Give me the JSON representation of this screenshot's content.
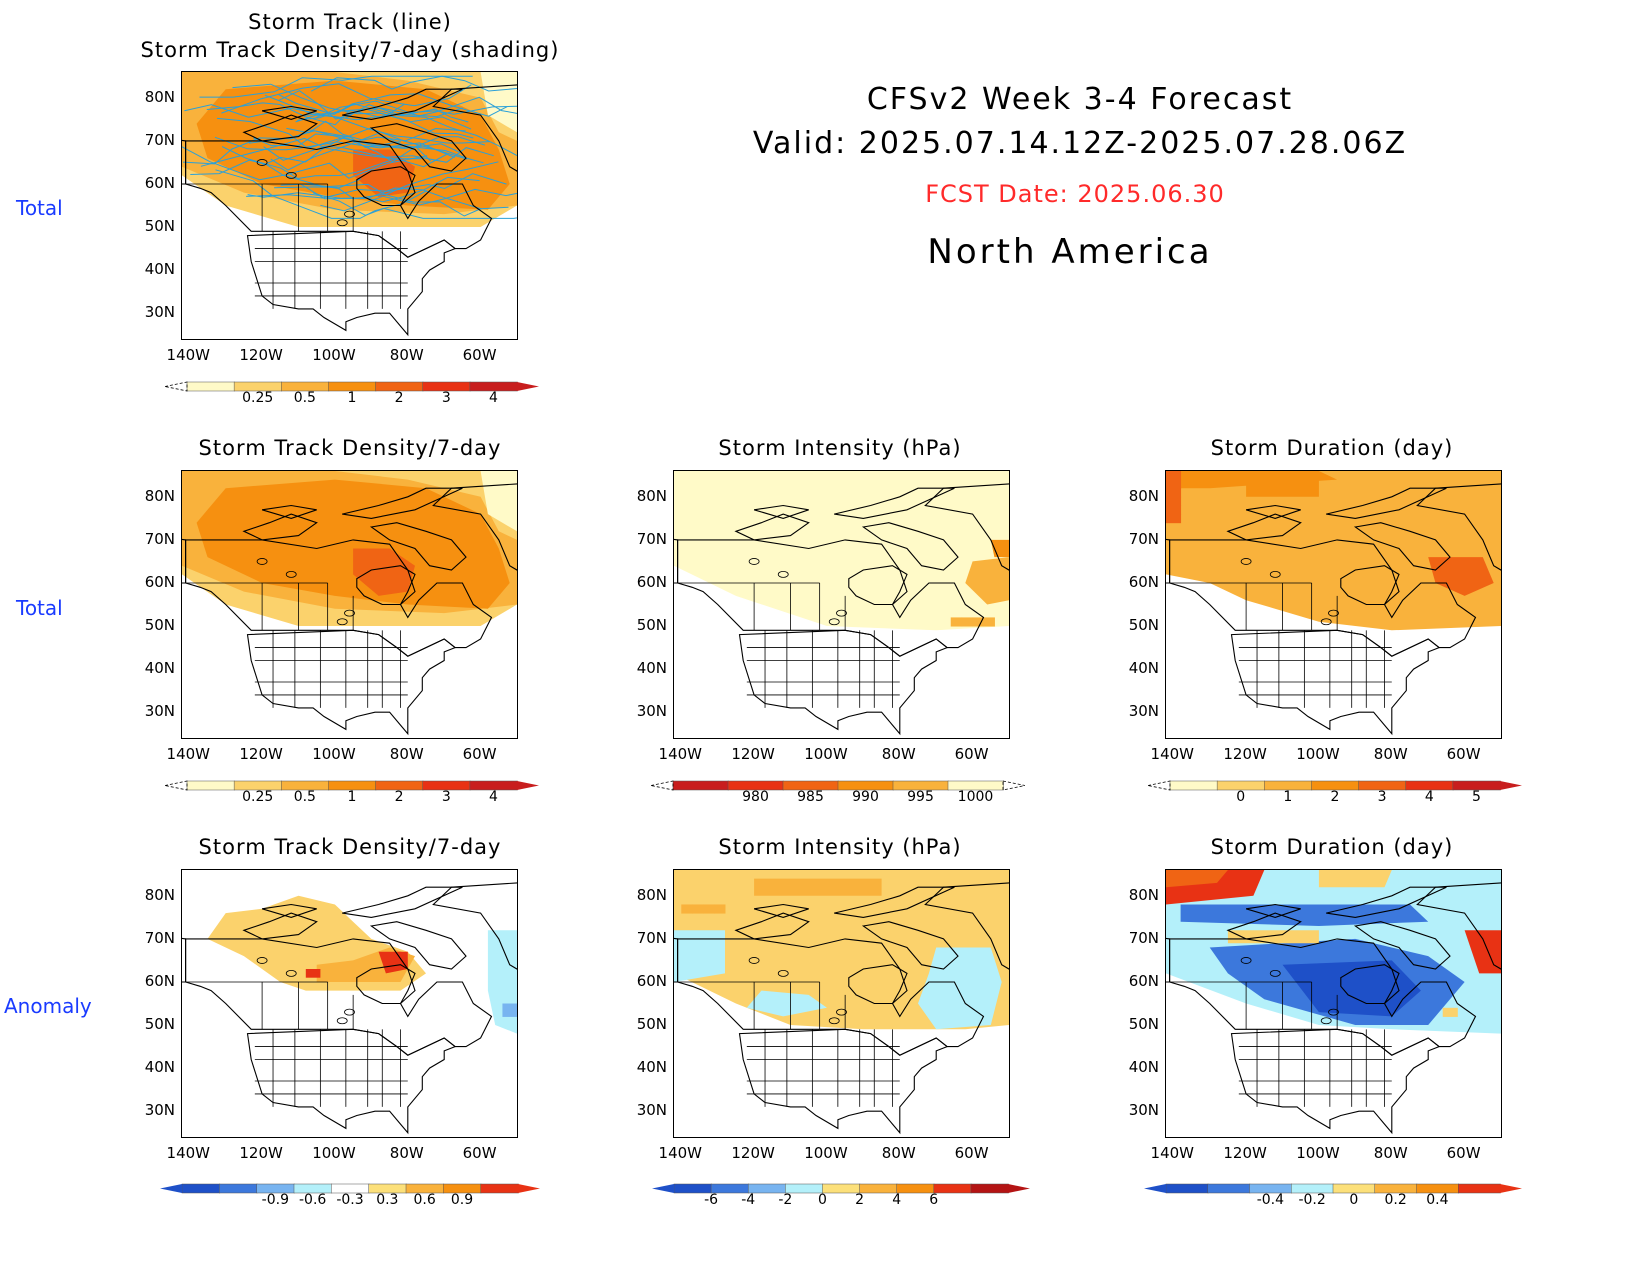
{
  "header": {
    "line1": "CFSv2 Week 3-4 Forecast",
    "line2": "Valid: 2025.07.14.12Z-2025.07.28.06Z",
    "fcst_date": "FCST Date: 2025.06.30",
    "region": "North America"
  },
  "row_labels": {
    "row1": "Total",
    "row2": "Total",
    "row3": "Anomaly"
  },
  "panels": {
    "p1": {
      "title1": "Storm Track (line)",
      "title2": "Storm Track Density/7-day (shading)"
    },
    "p2": {
      "title": "Storm Track Density/7-day"
    },
    "p3": {
      "title": "Storm Intensity (hPa)"
    },
    "p4": {
      "title": "Storm Duration (day)"
    },
    "p5": {
      "title": "Storm Track Density/7-day"
    },
    "p6": {
      "title": "Storm Intensity (hPa)"
    },
    "p7": {
      "title": "Storm Duration (day)"
    }
  },
  "axes": {
    "lat_labels": [
      "80N",
      "70N",
      "60N",
      "50N",
      "40N",
      "30N"
    ],
    "lon_labels": [
      "140W",
      "120W",
      "100W",
      "80W",
      "60W"
    ]
  },
  "colorbars": {
    "density_total": {
      "labels": [
        "0.25",
        "0.5",
        "1",
        "2",
        "3",
        "4"
      ],
      "colors": [
        "#fffac8",
        "#fbd26c",
        "#f9b23c",
        "#f69010",
        "#f06414",
        "#e83214",
        "#c81e1e"
      ]
    },
    "intensity_total": {
      "labels": [
        "980",
        "985",
        "990",
        "995",
        "1000"
      ],
      "colors": [
        "#c81e1e",
        "#e83214",
        "#f06414",
        "#f69010",
        "#f9b23c",
        "#fffac8"
      ]
    },
    "duration_total": {
      "labels": [
        "0",
        "1",
        "2",
        "3",
        "4",
        "5"
      ],
      "colors": [
        "#fffac8",
        "#fbd26c",
        "#f9b23c",
        "#f69010",
        "#f06414",
        "#e83214",
        "#c81e1e"
      ]
    },
    "density_anom": {
      "labels": [
        "-0.9",
        "-0.6",
        "-0.3",
        "0.3",
        "0.6",
        "0.9"
      ],
      "colors": [
        "#1e50c8",
        "#3c78dc",
        "#78b4f0",
        "#b4f0fa",
        "#ffffff",
        "#fce07a",
        "#f9b23c",
        "#f69010",
        "#e83214"
      ]
    },
    "intensity_anom": {
      "labels": [
        "-6",
        "-4",
        "-2",
        "0",
        "2",
        "4",
        "6"
      ],
      "colors": [
        "#1e50c8",
        "#3c78dc",
        "#78b4f0",
        "#b4f0fa",
        "#fce07a",
        "#f9b23c",
        "#f69010",
        "#e83214",
        "#b41414"
      ]
    },
    "duration_anom": {
      "labels": [
        "-0.4",
        "-0.2",
        "0",
        "0.2",
        "0.4"
      ],
      "colors": [
        "#1e50c8",
        "#3c78dc",
        "#78b4f0",
        "#b4f0fa",
        "#fce07a",
        "#f9b23c",
        "#f69010",
        "#e83214"
      ]
    }
  }
}
